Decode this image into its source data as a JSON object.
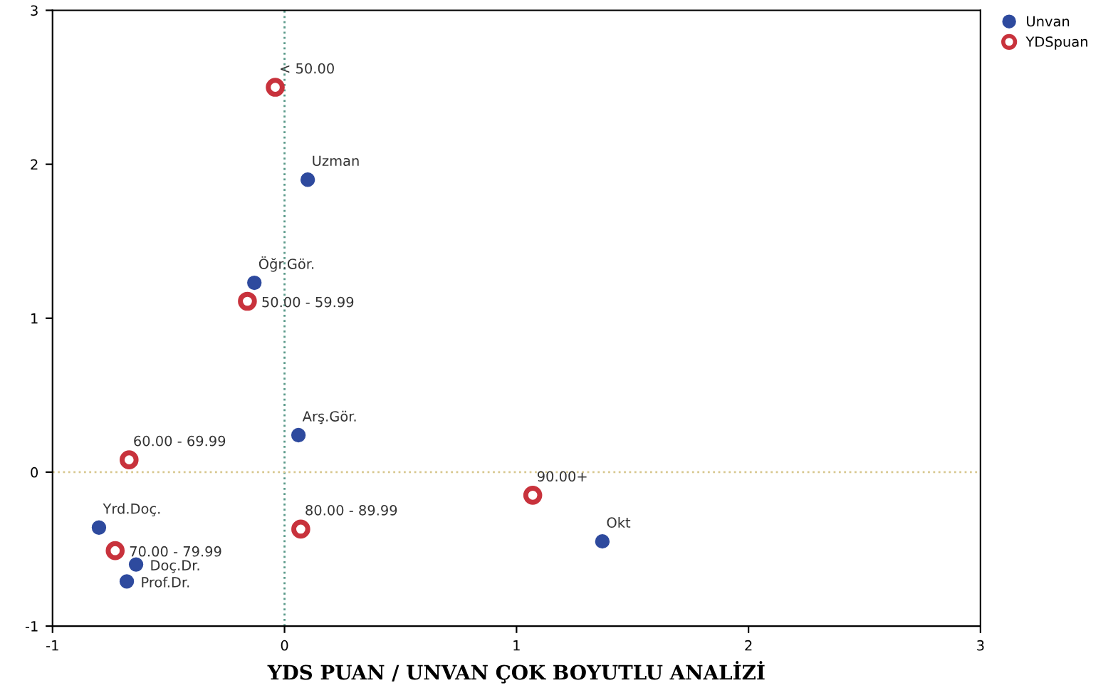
{
  "chart_data": {
    "type": "scatter",
    "xlabel": "YDS PUAN / UNVAN ÇOK BOYUTLU ANALİZİ",
    "series": [
      {
        "name": "Unvan",
        "color": "#2e4a9e",
        "marker": "circle",
        "x": [
          0.1,
          -0.13,
          0.06,
          -0.8,
          -0.64,
          -0.68,
          1.37
        ],
        "values": [
          1.9,
          1.23,
          0.24,
          -0.36,
          -0.6,
          -0.71,
          -0.45
        ]
      },
      {
        "name": "YDSpuan",
        "color": "#c8323c",
        "marker": "circle_open",
        "x": [
          -0.04,
          -0.16,
          -0.67,
          -0.73,
          0.07,
          1.07
        ],
        "values": [
          2.5,
          1.11,
          0.08,
          -0.51,
          -0.37,
          -0.15
        ]
      }
    ],
    "annotations": [
      {
        "text": "Uzman",
        "x": 0.1,
        "y": 1.9
      },
      {
        "text": "Öğr.Gör.",
        "x": -0.13,
        "y": 1.23
      },
      {
        "text": "Arş.Gör.",
        "x": 0.06,
        "y": 0.24
      },
      {
        "text": "Yrd.Doç.",
        "x": -0.8,
        "y": -0.36
      },
      {
        "text": "Doç.Dr.",
        "x": -0.64,
        "y": -0.6
      },
      {
        "text": "Prof.Dr.",
        "x": -0.68,
        "y": -0.71
      },
      {
        "text": "Okt",
        "x": 1.37,
        "y": -0.45
      },
      {
        "text": "< 50.00",
        "x": -0.04,
        "y": 2.5
      },
      {
        "text": "50.00 - 59.99",
        "x": -0.16,
        "y": 1.11
      },
      {
        "text": "60.00 - 69.99",
        "x": -0.67,
        "y": 0.08
      },
      {
        "text": "70.00 - 79.99",
        "x": -0.73,
        "y": -0.51
      },
      {
        "text": "80.00 - 89.99",
        "x": 0.07,
        "y": -0.37
      },
      {
        "text": "90.00+",
        "x": 1.07,
        "y": -0.15
      }
    ],
    "ref_lines": [
      {
        "axis": "x",
        "value": 0,
        "color": "#5a9a8a",
        "line_style": "dotted"
      },
      {
        "axis": "y",
        "value": 0,
        "color": "#d8c890",
        "line_style": "dotted"
      }
    ],
    "xlim": [
      -1,
      3
    ],
    "ylim": [
      -1,
      3
    ],
    "xticks": [
      -1,
      0,
      1,
      2,
      3
    ],
    "yticks": [
      -1,
      0,
      1,
      2,
      3
    ],
    "grid": false,
    "legend": "top right"
  }
}
